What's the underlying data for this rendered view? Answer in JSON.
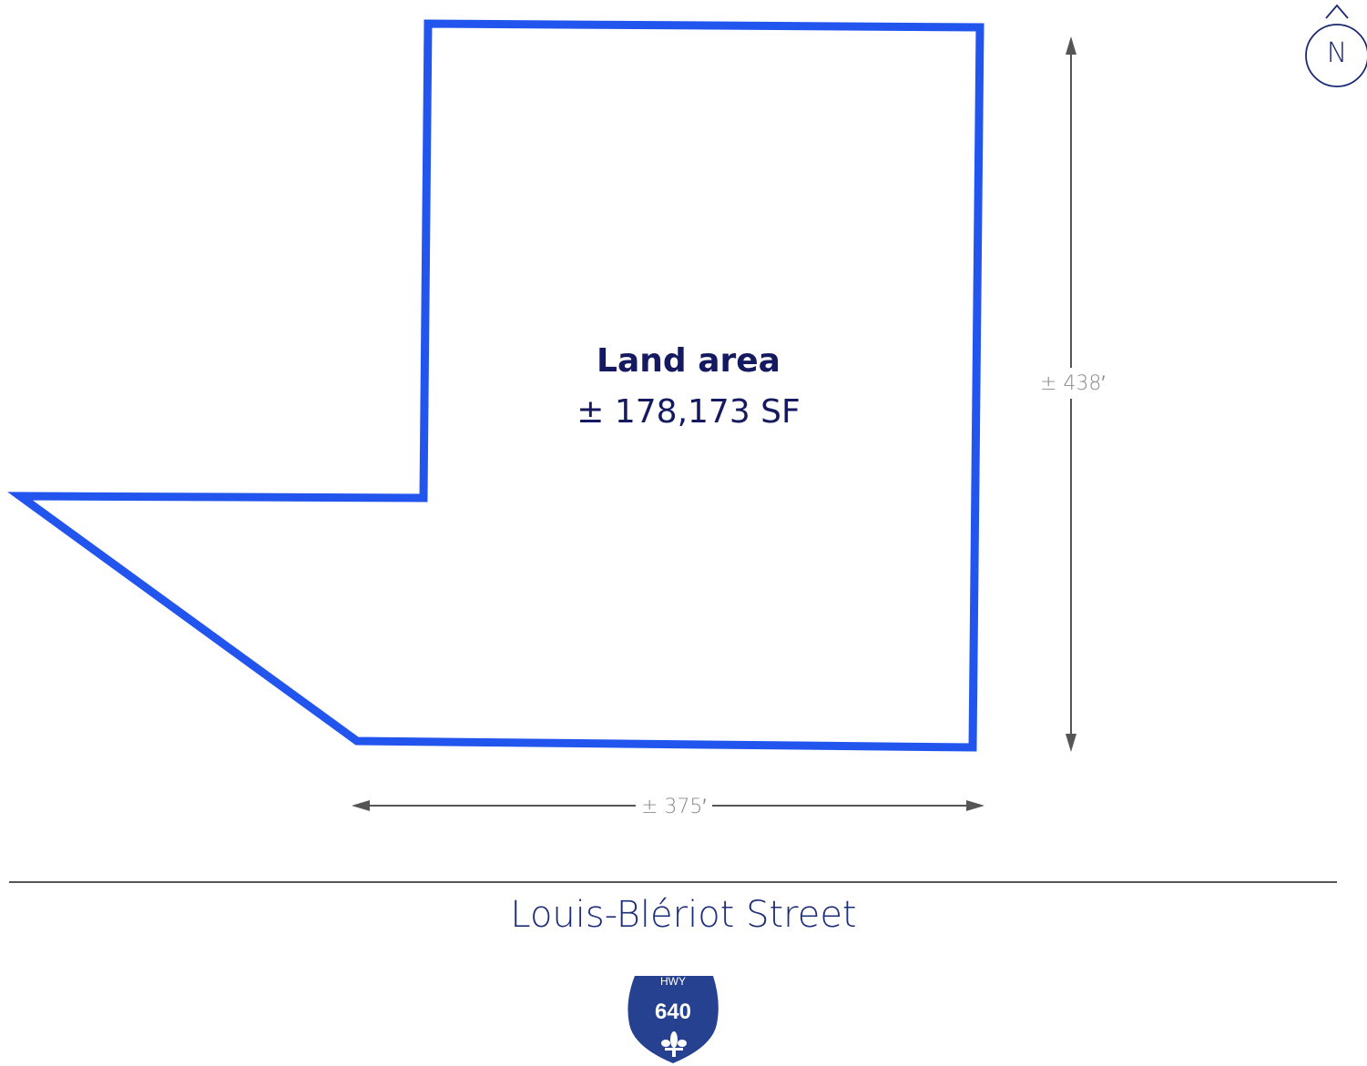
{
  "lot": {
    "title": "Land area",
    "area": "± 178,173 SF",
    "outline_color": "#2255ee"
  },
  "dimensions": {
    "height": "± 438′",
    "width": "± 375′"
  },
  "street": {
    "name": "Louis-Blériot Street"
  },
  "compass": {
    "letter": "N",
    "icon": "north-arrow-icon"
  },
  "highway_shield": {
    "prefix": "HWY",
    "number": "640",
    "icon": "fleur-de-lis-icon",
    "color": "#25418f"
  },
  "colors": {
    "text_dark": "#15195f",
    "dimension": "#8a8a8a",
    "street_line": "#555555"
  }
}
